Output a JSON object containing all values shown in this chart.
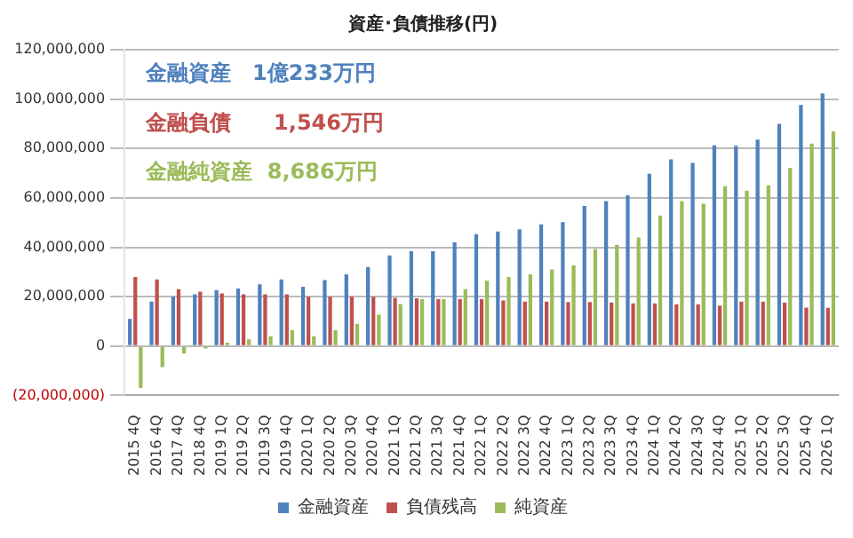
{
  "chart_data": {
    "type": "bar",
    "title": "資産･負債推移(円)",
    "categories": [
      "2015 4Q",
      "2016 4Q",
      "2017 4Q",
      "2018 4Q",
      "2019 1Q",
      "2019 2Q",
      "2019 3Q",
      "2019 4Q",
      "2020 1Q",
      "2020 2Q",
      "2020 3Q",
      "2020 4Q",
      "2021 1Q",
      "2021 2Q",
      "2021 3Q",
      "2021 4Q",
      "2022 1Q",
      "2022 2Q",
      "2022 3Q",
      "2022 4Q",
      "2023 1Q",
      "2023 2Q",
      "2023 3Q",
      "2023 4Q",
      "2024 1Q",
      "2024 2Q",
      "2024 3Q",
      "2024 4Q",
      "2025 1Q",
      "2025 2Q",
      "2025 3Q",
      "2025 4Q",
      "2026 1Q"
    ],
    "series": [
      {
        "name": "金融資産",
        "color": "#4f81bd",
        "values": [
          11000000,
          18000000,
          20000000,
          21000000,
          22700000,
          23300000,
          25000000,
          27000000,
          24000000,
          26700000,
          29000000,
          32000000,
          36700000,
          38400000,
          38400000,
          42000000,
          45300000,
          46400000,
          47300000,
          49300000,
          50200000,
          56700000,
          58700000,
          61000000,
          69800000,
          75600000,
          74200000,
          81300000,
          81100000,
          83600000,
          90000000,
          97600000,
          102300000
        ]
      },
      {
        "name": "負債残高",
        "color": "#c0504d",
        "values": [
          28000000,
          27000000,
          23000000,
          22000000,
          21300000,
          21000000,
          21000000,
          21000000,
          20000000,
          20000000,
          20000000,
          20000000,
          19500000,
          19300000,
          19000000,
          19000000,
          19000000,
          18400000,
          18000000,
          18000000,
          17800000,
          17800000,
          17600000,
          17300000,
          17300000,
          16900000,
          16900000,
          16400000,
          18000000,
          18000000,
          17600000,
          15600000,
          15500000
        ]
      },
      {
        "name": "純資産",
        "color": "#9bbb59",
        "values": [
          -17000000,
          -8500000,
          -3000000,
          -1000000,
          1400000,
          2700000,
          4000000,
          6400000,
          4000000,
          6400000,
          9000000,
          12700000,
          17000000,
          19000000,
          19000000,
          23000000,
          26400000,
          28000000,
          29000000,
          31000000,
          32700000,
          39300000,
          41000000,
          44000000,
          52900000,
          58700000,
          57600000,
          64700000,
          62900000,
          65100000,
          72200000,
          82000000,
          86900000
        ]
      }
    ],
    "annotations": [
      "金融資産　1億233万円",
      "金融負債　　1,546万円",
      "金融純資産  8,686万円"
    ],
    "ylim": [
      -20000000,
      120000000
    ],
    "yticks": [
      {
        "value": -20000000,
        "label": "(20,000,000)"
      },
      {
        "value": 0,
        "label": "0"
      },
      {
        "value": 20000000,
        "label": "20,000,000"
      },
      {
        "value": 40000000,
        "label": "40,000,000"
      },
      {
        "value": 60000000,
        "label": "60,000,000"
      },
      {
        "value": 80000000,
        "label": "80,000,000"
      },
      {
        "value": 100000000,
        "label": "100,000,000"
      },
      {
        "value": 120000000,
        "label": "120,000,000"
      }
    ],
    "grid": "y",
    "legend": "bottom"
  }
}
